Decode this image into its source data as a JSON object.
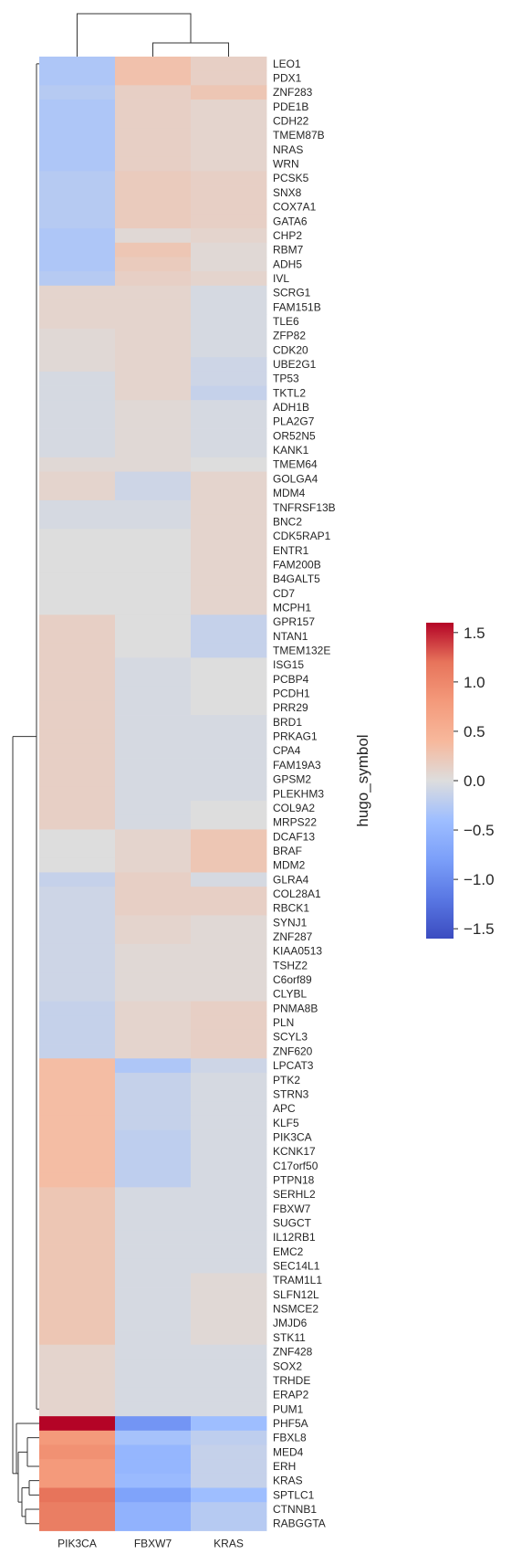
{
  "chart_data": {
    "type": "heatmap",
    "columns": [
      "PIK3CA",
      "FBXW7",
      "KRAS"
    ],
    "rows": [
      "LEO1",
      "PDX1",
      "ZNF283",
      "PDE1B",
      "CDH22",
      "TMEM87B",
      "NRAS",
      "WRN",
      "PCSK5",
      "SNX8",
      "COX7A1",
      "GATA6",
      "CHP2",
      "RBM7",
      "ADH5",
      "IVL",
      "SCRG1",
      "FAM151B",
      "TLE6",
      "ZFP82",
      "CDK20",
      "UBE2G1",
      "TP53",
      "TKTL2",
      "ADH1B",
      "PLA2G7",
      "OR52N5",
      "KANK1",
      "TMEM64",
      "GOLGA4",
      "MDM4",
      "TNFRSF13B",
      "BNC2",
      "CDK5RAP1",
      "ENTR1",
      "FAM200B",
      "B4GALT5",
      "CD7",
      "MCPH1",
      "GPR157",
      "NTAN1",
      "TMEM132E",
      "ISG15",
      "PCBP4",
      "PCDH1",
      "PRR29",
      "BRD1",
      "PRKAG1",
      "CPA4",
      "FAM19A3",
      "GPSM2",
      "PLEKHM3",
      "COL9A2",
      "MRPS22",
      "DCAF13",
      "BRAF",
      "MDM2",
      "GLRA4",
      "COL28A1",
      "RBCK1",
      "SYNJ1",
      "ZNF287",
      "KIAA0513",
      "TSHZ2",
      "C6orf89",
      "CLYBL",
      "PNMA8B",
      "PLN",
      "SCYL3",
      "ZNF620",
      "LPCAT3",
      "PTK2",
      "STRN3",
      "APC",
      "KLF5",
      "PIK3CA",
      "KCNK17",
      "C17orf50",
      "PTPN18",
      "SERHL2",
      "FBXW7",
      "SUGCT",
      "IL12RB1",
      "EMC2",
      "SEC14L1",
      "TRAM1L1",
      "SLFN12L",
      "NSMCE2",
      "JMJD6",
      "STK11",
      "ZNF428",
      "SOX2",
      "TRHDE",
      "ERAP2",
      "PUM1",
      "PHF5A",
      "FBXL8",
      "MED4",
      "ERH",
      "KRAS",
      "SPTLC1",
      "CTNNB1",
      "RABGGTA"
    ],
    "values": [
      [
        -0.3,
        0.3,
        0.15
      ],
      [
        -0.3,
        0.3,
        0.15
      ],
      [
        -0.25,
        0.15,
        0.25
      ],
      [
        -0.3,
        0.15,
        0.1
      ],
      [
        -0.3,
        0.15,
        0.1
      ],
      [
        -0.3,
        0.15,
        0.1
      ],
      [
        -0.3,
        0.15,
        0.1
      ],
      [
        -0.3,
        0.15,
        0.1
      ],
      [
        -0.25,
        0.2,
        0.15
      ],
      [
        -0.25,
        0.2,
        0.15
      ],
      [
        -0.25,
        0.2,
        0.15
      ],
      [
        -0.25,
        0.2,
        0.15
      ],
      [
        -0.3,
        0.05,
        0.1
      ],
      [
        -0.3,
        0.25,
        0.05
      ],
      [
        -0.3,
        0.2,
        0.05
      ],
      [
        -0.25,
        0.15,
        0.1
      ],
      [
        0.1,
        0.1,
        -0.05
      ],
      [
        0.1,
        0.1,
        -0.05
      ],
      [
        0.1,
        0.1,
        -0.05
      ],
      [
        0.05,
        0.1,
        -0.05
      ],
      [
        0.05,
        0.1,
        -0.05
      ],
      [
        0.05,
        0.1,
        -0.1
      ],
      [
        -0.05,
        0.1,
        -0.1
      ],
      [
        -0.05,
        0.1,
        -0.15
      ],
      [
        -0.05,
        0.05,
        -0.05
      ],
      [
        -0.05,
        0.05,
        -0.05
      ],
      [
        -0.05,
        0.05,
        -0.05
      ],
      [
        -0.05,
        0.05,
        -0.05
      ],
      [
        0.05,
        0.05,
        0.0
      ],
      [
        0.1,
        -0.1,
        0.1
      ],
      [
        0.1,
        -0.1,
        0.1
      ],
      [
        -0.05,
        -0.05,
        0.1
      ],
      [
        -0.05,
        -0.05,
        0.1
      ],
      [
        0.0,
        0.0,
        0.1
      ],
      [
        0.0,
        0.0,
        0.1
      ],
      [
        0.0,
        0.0,
        0.1
      ],
      [
        0.0,
        0.0,
        0.1
      ],
      [
        0.0,
        0.0,
        0.1
      ],
      [
        0.0,
        0.0,
        0.1
      ],
      [
        0.15,
        0.0,
        -0.15
      ],
      [
        0.15,
        0.0,
        -0.15
      ],
      [
        0.15,
        0.0,
        -0.15
      ],
      [
        0.15,
        -0.05,
        0.0
      ],
      [
        0.15,
        -0.05,
        0.0
      ],
      [
        0.15,
        -0.05,
        0.0
      ],
      [
        0.15,
        -0.05,
        0.0
      ],
      [
        0.15,
        -0.05,
        -0.05
      ],
      [
        0.15,
        -0.05,
        -0.05
      ],
      [
        0.15,
        -0.05,
        -0.05
      ],
      [
        0.15,
        -0.05,
        -0.05
      ],
      [
        0.15,
        -0.05,
        -0.05
      ],
      [
        0.15,
        -0.05,
        -0.05
      ],
      [
        0.15,
        -0.05,
        0.0
      ],
      [
        0.15,
        -0.05,
        0.0
      ],
      [
        0.0,
        0.1,
        0.25
      ],
      [
        0.0,
        0.1,
        0.25
      ],
      [
        0.0,
        0.1,
        0.25
      ],
      [
        -0.15,
        0.15,
        -0.05
      ],
      [
        -0.1,
        0.15,
        0.15
      ],
      [
        -0.1,
        0.15,
        0.15
      ],
      [
        -0.1,
        0.1,
        0.05
      ],
      [
        -0.1,
        0.1,
        0.05
      ],
      [
        -0.1,
        0.05,
        0.05
      ],
      [
        -0.1,
        0.05,
        0.05
      ],
      [
        -0.1,
        0.05,
        0.05
      ],
      [
        -0.1,
        0.05,
        0.05
      ],
      [
        -0.15,
        0.1,
        0.15
      ],
      [
        -0.15,
        0.1,
        0.15
      ],
      [
        -0.15,
        0.1,
        0.15
      ],
      [
        -0.15,
        0.1,
        0.15
      ],
      [
        0.35,
        -0.3,
        -0.1
      ],
      [
        0.35,
        -0.15,
        -0.05
      ],
      [
        0.35,
        -0.15,
        -0.05
      ],
      [
        0.35,
        -0.15,
        -0.05
      ],
      [
        0.35,
        -0.15,
        -0.05
      ],
      [
        0.35,
        -0.2,
        -0.05
      ],
      [
        0.35,
        -0.2,
        -0.05
      ],
      [
        0.35,
        -0.2,
        -0.05
      ],
      [
        0.35,
        -0.2,
        -0.05
      ],
      [
        0.25,
        -0.05,
        -0.05
      ],
      [
        0.25,
        -0.05,
        -0.05
      ],
      [
        0.25,
        -0.05,
        -0.05
      ],
      [
        0.25,
        -0.05,
        -0.05
      ],
      [
        0.25,
        -0.05,
        -0.05
      ],
      [
        0.25,
        -0.05,
        -0.05
      ],
      [
        0.25,
        -0.05,
        0.05
      ],
      [
        0.25,
        -0.05,
        0.05
      ],
      [
        0.25,
        -0.05,
        0.05
      ],
      [
        0.25,
        -0.05,
        0.05
      ],
      [
        0.25,
        -0.05,
        0.05
      ],
      [
        0.1,
        -0.05,
        -0.05
      ],
      [
        0.1,
        -0.05,
        -0.05
      ],
      [
        0.1,
        -0.05,
        -0.05
      ],
      [
        0.1,
        -0.05,
        -0.05
      ],
      [
        0.1,
        -0.05,
        -0.05
      ],
      [
        1.6,
        -0.9,
        -0.4
      ],
      [
        0.8,
        -0.35,
        -0.2
      ],
      [
        0.9,
        -0.5,
        -0.15
      ],
      [
        0.8,
        -0.5,
        -0.15
      ],
      [
        0.8,
        -0.45,
        -0.15
      ],
      [
        1.2,
        -0.75,
        -0.4
      ],
      [
        1.1,
        -0.55,
        -0.25
      ],
      [
        1.1,
        -0.55,
        -0.25
      ]
    ],
    "vmin": -1.6,
    "vmax": 1.6,
    "colormap": "coolwarm",
    "colorbar_ticks": [
      1.5,
      1.0,
      0.5,
      0.0,
      -0.5,
      -1.0,
      -1.5
    ],
    "colorbar_tick_labels": [
      "1.5",
      "1.0",
      "0.5",
      "0.0",
      "−0.5",
      "−1.0",
      "−1.5"
    ],
    "ylabel": "hugo_symbol",
    "dendrogram_columns": true,
    "dendrogram_rows": true
  }
}
